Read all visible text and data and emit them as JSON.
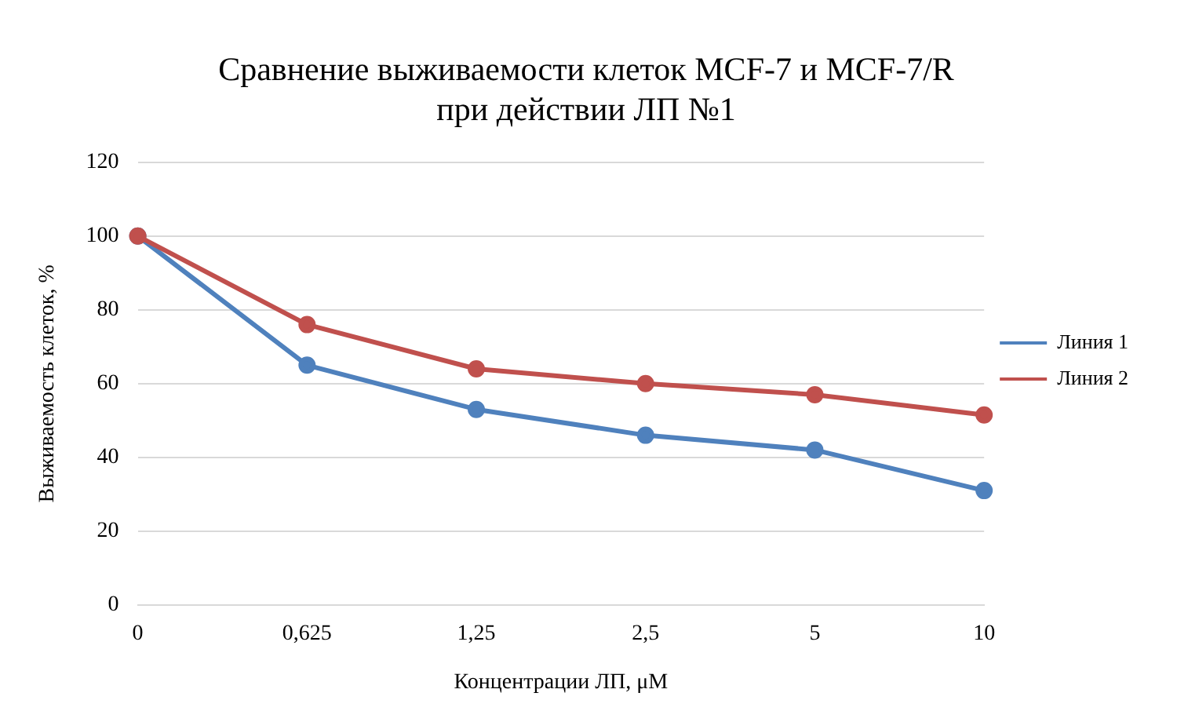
{
  "chart_data": {
    "type": "line",
    "title": "Сравнение выживаемости клеток MCF-7 и MCF-7/R\nпри действии ЛП №1",
    "xlabel": "Концентрации ЛП, μM",
    "ylabel": "Выживаемость клеток, %",
    "categories": [
      "0",
      "0,625",
      "1,25",
      "2,5",
      "5",
      "10"
    ],
    "series": [
      {
        "name": "Линия 1",
        "color": "#4f81bd",
        "values": [
          100,
          65,
          53,
          46,
          42,
          31
        ]
      },
      {
        "name": "Линия 2",
        "color": "#c0504d",
        "values": [
          100,
          76,
          64,
          60,
          57,
          51.5
        ]
      }
    ],
    "ylim": [
      0,
      120
    ],
    "yticks": [
      0,
      20,
      40,
      60,
      80,
      100,
      120
    ],
    "grid": "y",
    "legend": "right",
    "marker": "circle",
    "line_style": "solid"
  }
}
